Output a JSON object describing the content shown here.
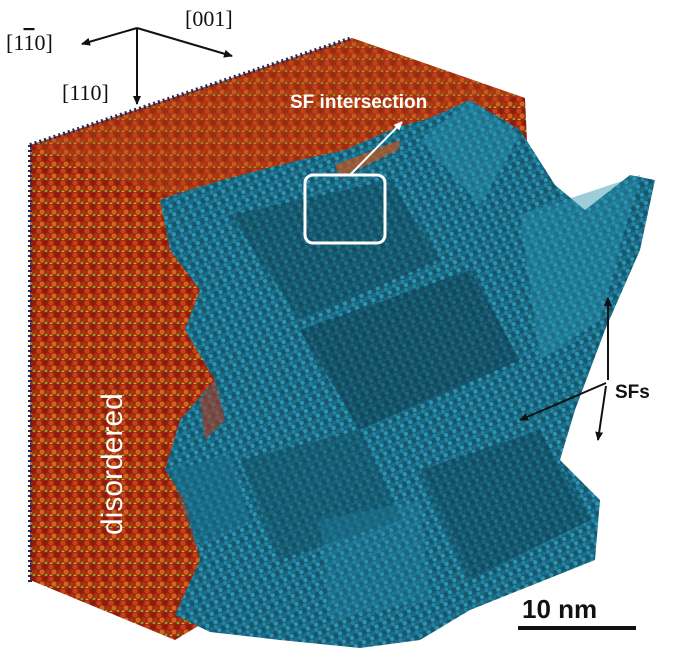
{
  "figure": {
    "axes": {
      "a1": "[1",
      "a1_bar": "1",
      "a1_end": "0]",
      "a2": "[001]",
      "a3": "[110]"
    },
    "labels": {
      "sf_intersection": "SF intersection",
      "sfs": "SFs",
      "disordered": "disordered"
    },
    "scale_bar": {
      "label": "10 nm"
    },
    "colors": {
      "disordered_red": "#a8260f",
      "disordered_orange": "#c8541a",
      "ordered_blue": "#1d6d86",
      "ordered_teal": "#2a8aa3",
      "edge_navy": "#1a2a63",
      "annotation_white": "#ffffff",
      "annotation_black": "#111111"
    }
  }
}
